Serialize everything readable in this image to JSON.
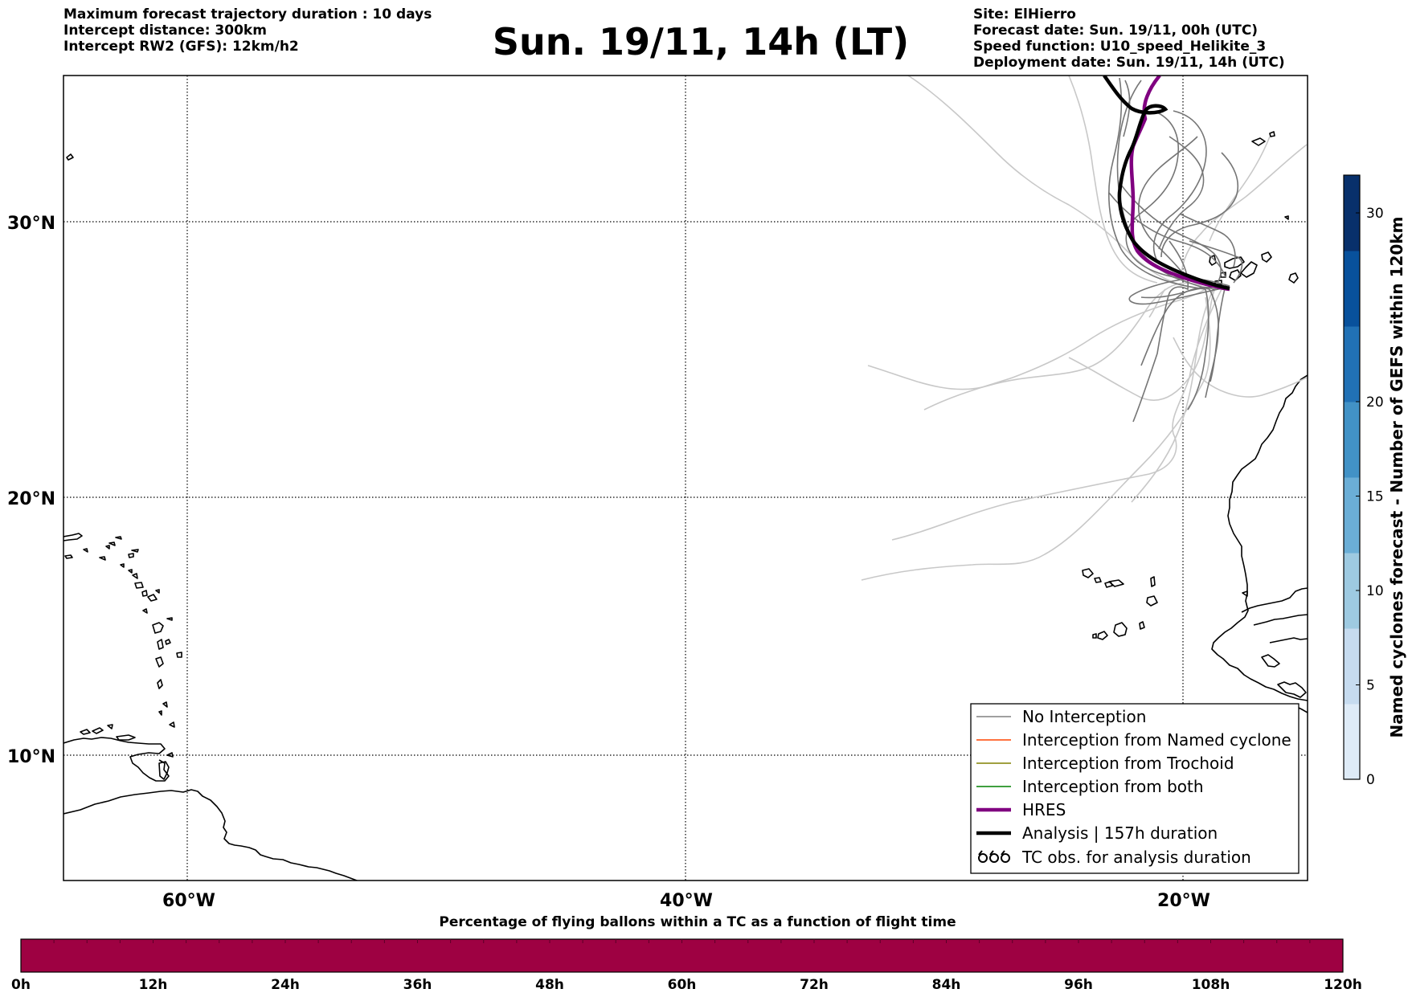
{
  "header_left": [
    "Maximum forecast trajectory duration : 10 days",
    "Intercept distance: 300km",
    "Intercept RW2 (GFS):  12km/h2"
  ],
  "title": "Sun. 19/11, 14h (LT)",
  "header_right": [
    "Site: ElHierro",
    "Forecast date: Sun. 19/11, 00h (UTC)",
    "Speed function: U10_speed_Helikite_3",
    "Deployment date: Sun. 19/11, 14h (UTC)"
  ],
  "map": {
    "lat_labels": [
      "30°N",
      "20°N",
      "10°N"
    ],
    "lon_labels": [
      "60°W",
      "40°W",
      "20°W"
    ],
    "gridlines": "dotted"
  },
  "legend": [
    {
      "label": "No Interception",
      "color": "#808080",
      "style": "thin"
    },
    {
      "label": "Interception from Named cyclone",
      "color": "#ff4500",
      "style": "thin"
    },
    {
      "label": "Interception from Trochoid",
      "color": "#808000",
      "style": "thin"
    },
    {
      "label": "Interception from both",
      "color": "#008000",
      "style": "thin"
    },
    {
      "label": "HRES",
      "color": "#800080",
      "style": "thick"
    },
    {
      "label": "Analysis | 157h duration",
      "color": "#000000",
      "style": "thick"
    },
    {
      "label": "TC obs. for analysis duration",
      "color": "#000000",
      "style": "tc-symbol"
    }
  ],
  "vertical_colorbar": {
    "title": "Named cyclones forecast - Number of GEFS within 120km",
    "ticks": [
      "0",
      "5",
      "10",
      "15",
      "20",
      "30"
    ],
    "range": [
      0,
      32
    ],
    "colors": [
      "#deebf7",
      "#c6dbef",
      "#9ecae1",
      "#6baed6",
      "#4292c6",
      "#2171b5",
      "#08519c",
      "#08306b"
    ]
  },
  "horizontal_colorbar": {
    "title": "Percentage of flying ballons within a TC as a function of flight time",
    "ticks": [
      "0h",
      "12h",
      "24h",
      "36h",
      "48h",
      "60h",
      "72h",
      "84h",
      "96h",
      "108h",
      "120h"
    ],
    "fill_color": "#9e0142"
  }
}
